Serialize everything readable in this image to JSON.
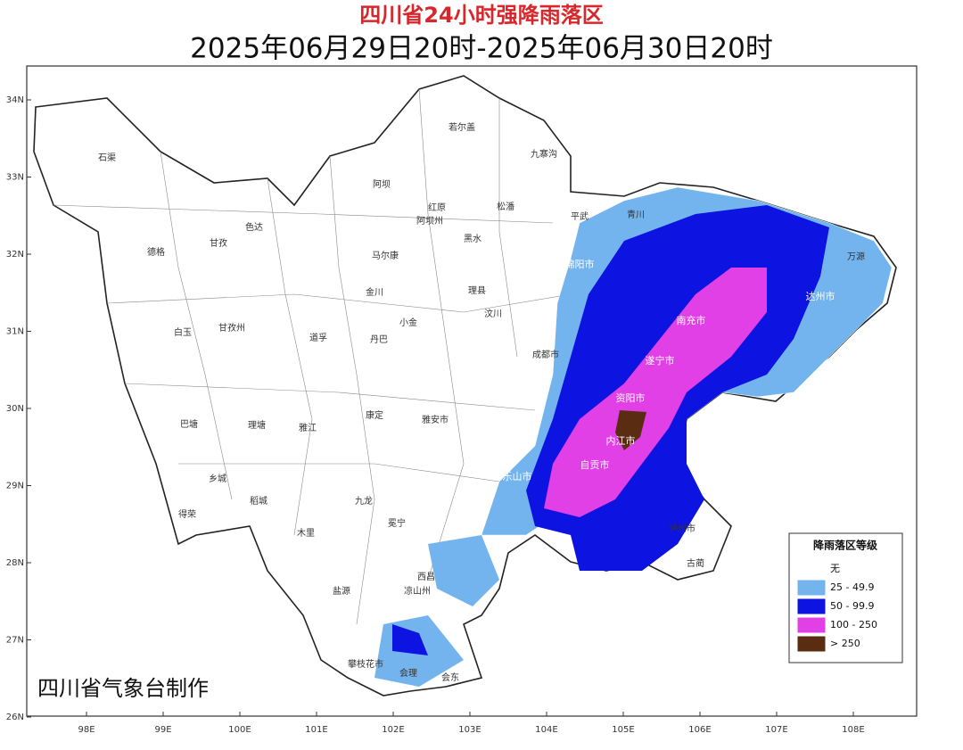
{
  "header": {
    "title": "四川省24小时强降雨落区",
    "subtitle": "2025年06月29日20时-2025年06月30日20时"
  },
  "axes": {
    "lat_ticks": [
      {
        "value": 34,
        "label": "34N"
      },
      {
        "value": 33,
        "label": "33N"
      },
      {
        "value": 32,
        "label": "32N"
      },
      {
        "value": 31,
        "label": "31N"
      },
      {
        "value": 30,
        "label": "30N"
      },
      {
        "value": 29,
        "label": "29N"
      },
      {
        "value": 28,
        "label": "28N"
      },
      {
        "value": 27,
        "label": "27N"
      },
      {
        "value": 26,
        "label": "26N"
      }
    ],
    "lon_ticks": [
      {
        "value": 98,
        "label": "98E"
      },
      {
        "value": 99,
        "label": "99E"
      },
      {
        "value": 100,
        "label": "100E"
      },
      {
        "value": 101,
        "label": "101E"
      },
      {
        "value": 102,
        "label": "102E"
      },
      {
        "value": 103,
        "label": "103E"
      },
      {
        "value": 104,
        "label": "104E"
      },
      {
        "value": 105,
        "label": "105E"
      },
      {
        "value": 106,
        "label": "106E"
      },
      {
        "value": 107,
        "label": "107E"
      },
      {
        "value": 108,
        "label": "108E"
      }
    ]
  },
  "legend": {
    "title": "降雨落区等级",
    "items": [
      {
        "label": "无",
        "color": "#ffffff"
      },
      {
        "label": "25 - 49.9",
        "color": "#74b4ee"
      },
      {
        "label": "50 - 99.9",
        "color": "#0d13e0"
      },
      {
        "label": "100 - 250",
        "color": "#e040e6"
      },
      {
        "label": "> 250",
        "color": "#5a2d12"
      }
    ]
  },
  "credit": "四川省气象台制作",
  "places": [
    "石渠",
    "德格",
    "甘孜",
    "色达",
    "白玉",
    "巴塘",
    "理塘",
    "乡城",
    "稻城",
    "得荣",
    "若尔盖",
    "九寨沟",
    "阿坝",
    "红原",
    "松潘",
    "马尔康",
    "黑水",
    "金川",
    "理县",
    "小金",
    "汶川",
    "丹巴",
    "道孚",
    "康定",
    "雅江",
    "九龙",
    "木里",
    "冕宁",
    "西昌",
    "盐源",
    "会理",
    "会东",
    "成都市",
    "绵阳市",
    "南充市",
    "达州市",
    "遂宁市",
    "资阳市",
    "内江市",
    "自贡市",
    "乐山市",
    "泸州市",
    "万源",
    "古蔺",
    "雅安市",
    "凉山州",
    "攀枝花市",
    "甘孜州",
    "阿坝州",
    "平武",
    "青川"
  ]
}
